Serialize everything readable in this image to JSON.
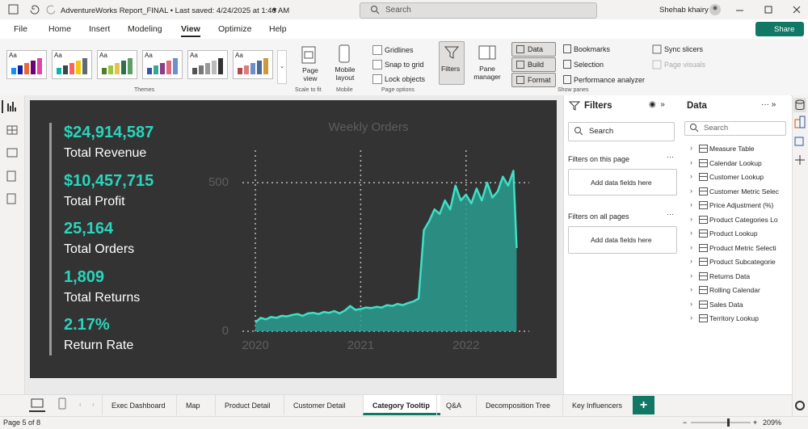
{
  "titlebar": {
    "file_title": "AdventureWorks Report_FINAL • Last saved: 4/24/2025 at 1:46 AM",
    "search": "Search",
    "user": "Shehab khairy"
  },
  "menu": [
    "File",
    "Home",
    "Insert",
    "Modeling",
    "View",
    "Optimize",
    "Help"
  ],
  "share": "Share",
  "ribbon": {
    "theme_samples": [
      "Aa",
      "Aa",
      "Aa",
      "Aa",
      "Aa",
      "Aa"
    ],
    "themes": "Themes",
    "page_view": "Page view",
    "scale_to_fit": "Scale to fit",
    "mobile_layout": "Mobile layout",
    "mobile": "Mobile",
    "gridlines": "Gridlines",
    "snap_to_grid": "Snap to grid",
    "lock_objects": "Lock objects",
    "page_options": "Page options",
    "filters": "Filters",
    "pane_manager": "Pane manager",
    "data": "Data",
    "build": "Build",
    "format": "Format",
    "bookmarks": "Bookmarks",
    "selection": "Selection",
    "performance_analyzer": "Performance analyzer",
    "show_panes": "Show panes",
    "sync_slicers": "Sync slicers",
    "page_visuals": "Page visuals"
  },
  "kpis": [
    {
      "value": "$24,914,587",
      "label": "Total Revenue"
    },
    {
      "value": "$10,457,715",
      "label": "Total Profit"
    },
    {
      "value": "25,164",
      "label": "Total Orders"
    },
    {
      "value": "1,809",
      "label": "Total Returns"
    },
    {
      "value": "2.17%",
      "label": "Return Rate"
    }
  ],
  "chart_data": {
    "type": "area",
    "title": "Weekly Orders",
    "color": "#3fe0c5",
    "fill_color": "#2a9d8f",
    "x": [
      2020.0,
      2020.05,
      2020.1,
      2020.15,
      2020.2,
      2020.25,
      2020.3,
      2020.35,
      2020.4,
      2020.45,
      2020.5,
      2020.55,
      2020.6,
      2020.65,
      2020.7,
      2020.75,
      2020.8,
      2020.85,
      2020.9,
      2020.95,
      2021.0,
      2021.05,
      2021.1,
      2021.15,
      2021.2,
      2021.25,
      2021.3,
      2021.35,
      2021.4,
      2021.45,
      2021.5,
      2021.55,
      2021.6,
      2021.65,
      2021.7,
      2021.75,
      2021.8,
      2021.85,
      2021.9,
      2021.95,
      2022.0,
      2022.05,
      2022.1,
      2022.15,
      2022.2,
      2022.25,
      2022.3,
      2022.35,
      2022.4,
      2022.45,
      2022.48
    ],
    "values": [
      30,
      45,
      40,
      48,
      45,
      52,
      50,
      55,
      58,
      52,
      60,
      62,
      58,
      65,
      62,
      68,
      60,
      70,
      85,
      72,
      75,
      80,
      78,
      82,
      80,
      88,
      85,
      92,
      88,
      95,
      100,
      110,
      340,
      370,
      410,
      395,
      440,
      410,
      490,
      440,
      460,
      430,
      480,
      440,
      500,
      450,
      470,
      520,
      490,
      540,
      280
    ],
    "xlim": [
      2019.9,
      2022.6
    ],
    "ylim": [
      0,
      560
    ],
    "xticks": [
      2020,
      2021,
      2022
    ],
    "yticks": [
      0,
      500
    ],
    "grid": true
  },
  "filters_pane": {
    "title": "Filters",
    "search": "Search",
    "on_this_page": "Filters on this page",
    "add_here": "Add data fields here",
    "on_all_pages": "Filters on all pages",
    "add_here_all": "Add data fields here"
  },
  "data_pane": {
    "title": "Data",
    "search": "Search",
    "tables": [
      "Measure Table",
      "Calendar Lookup",
      "Customer Lookup",
      "Customer Metric Selec",
      "Price Adjustment (%)",
      "Product Categories Lo",
      "Product Lookup",
      "Product Metric Selecti",
      "Product Subcategorie",
      "Returns Data",
      "Rolling Calendar",
      "Sales Data",
      "Territory Lookup"
    ]
  },
  "tabs": [
    "Exec Dashboard",
    "Map",
    "Product Detail",
    "Customer Detail",
    "Category Tooltip",
    "Q&A",
    "Decomposition Tree",
    "Key Influencers"
  ],
  "status": {
    "page": "Page 5 of 8",
    "zoom": "209%"
  }
}
